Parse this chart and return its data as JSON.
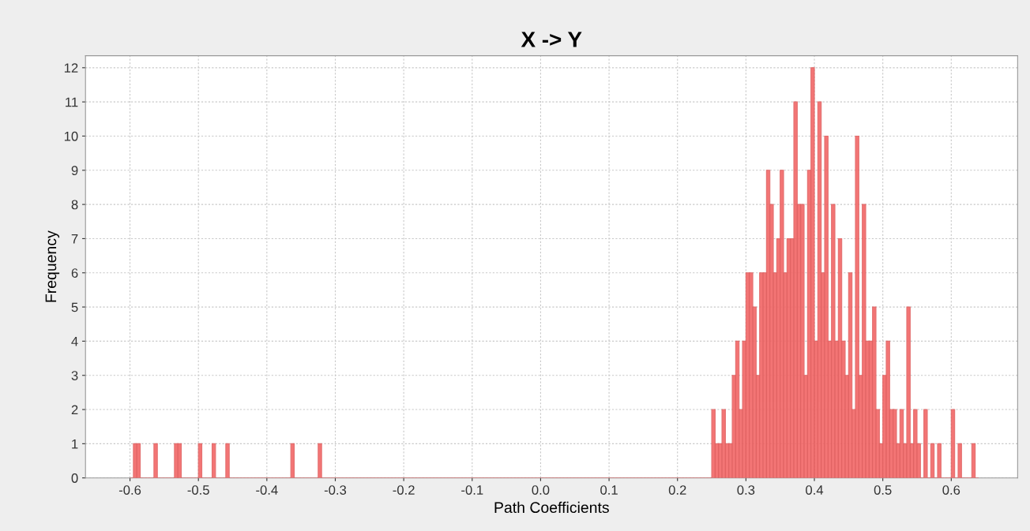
{
  "chart_data": {
    "type": "histogram",
    "title": "X -> Y",
    "xlabel": "Path Coefficients",
    "ylabel": "Frequency",
    "color": "#f26666",
    "bins": [
      -0.6,
      -0.595,
      -0.59,
      -0.585,
      -0.58,
      -0.575,
      -0.57,
      -0.565,
      -0.56,
      -0.555,
      -0.55,
      -0.545,
      -0.54,
      -0.535,
      -0.53,
      -0.525,
      -0.52,
      -0.515,
      -0.51,
      -0.505,
      -0.5,
      -0.495,
      -0.49,
      -0.485,
      -0.48,
      -0.475,
      -0.47,
      -0.465,
      -0.46,
      -0.455,
      -0.45,
      -0.445,
      -0.44,
      -0.435,
      -0.43,
      -0.425,
      -0.42,
      -0.415,
      -0.41,
      -0.405,
      -0.4,
      -0.395,
      -0.39,
      -0.385,
      -0.38,
      -0.375,
      -0.37,
      -0.365,
      -0.36,
      -0.355,
      -0.35,
      -0.345,
      -0.34,
      -0.335,
      -0.33,
      -0.325,
      -0.32,
      -0.315,
      -0.31,
      -0.305,
      -0.3,
      -0.295,
      -0.29,
      -0.285,
      -0.28,
      -0.275,
      -0.27,
      -0.265,
      -0.26,
      -0.255,
      -0.25,
      -0.245,
      -0.24,
      -0.235,
      -0.23,
      -0.225,
      -0.22,
      -0.215,
      -0.21,
      -0.205,
      -0.2,
      -0.195,
      -0.19,
      -0.185,
      -0.18,
      -0.175,
      -0.17,
      -0.165,
      -0.16,
      -0.155,
      -0.15,
      -0.145,
      -0.14,
      -0.135,
      -0.13,
      -0.125,
      -0.12,
      -0.115,
      -0.11,
      -0.105,
      -0.1,
      -0.095,
      -0.09,
      -0.085,
      -0.08,
      -0.075,
      -0.07,
      -0.065,
      -0.06,
      -0.055,
      -0.05,
      -0.045,
      -0.04,
      -0.035,
      -0.03,
      -0.025,
      -0.02,
      -0.015,
      -0.01,
      -0.005,
      0.0,
      0.005,
      0.01,
      0.015,
      0.02,
      0.025,
      0.03,
      0.035,
      0.04,
      0.045,
      0.05,
      0.055,
      0.06,
      0.065,
      0.07,
      0.075,
      0.08,
      0.085,
      0.09,
      0.095,
      0.1,
      0.105,
      0.11,
      0.115,
      0.12,
      0.125,
      0.13,
      0.135,
      0.14,
      0.145,
      0.15,
      0.155,
      0.16,
      0.165,
      0.17,
      0.175,
      0.18,
      0.185,
      0.19,
      0.195,
      0.2,
      0.205,
      0.21,
      0.215,
      0.22,
      0.225,
      0.23,
      0.235,
      0.24,
      0.245,
      0.25,
      0.255,
      0.26,
      0.265,
      0.27,
      0.275,
      0.28,
      0.285,
      0.29,
      0.295,
      0.3,
      0.305,
      0.31,
      0.315,
      0.32,
      0.325,
      0.33,
      0.335,
      0.34,
      0.345,
      0.35,
      0.355,
      0.36,
      0.365,
      0.37,
      0.375,
      0.38,
      0.385,
      0.39,
      0.395,
      0.4,
      0.405,
      0.41,
      0.415,
      0.42,
      0.425,
      0.43,
      0.435,
      0.44,
      0.445,
      0.45,
      0.455,
      0.46,
      0.465,
      0.47,
      0.475,
      0.48,
      0.485,
      0.49,
      0.495,
      0.5,
      0.505,
      0.51,
      0.515,
      0.52,
      0.525,
      0.53,
      0.535,
      0.54,
      0.545,
      0.55,
      0.555,
      0.56,
      0.565,
      0.57,
      0.575,
      0.58,
      0.585,
      0.59,
      0.595,
      0.6,
      0.605,
      0.61,
      0.615,
      0.62,
      0.625,
      0.63,
      0.635,
      0.64
    ],
    "values": [
      0,
      1,
      1,
      0,
      0,
      0,
      0,
      1,
      0,
      0,
      0,
      0,
      0,
      1,
      1,
      0,
      0,
      0,
      0,
      0,
      1,
      0,
      0,
      0,
      1,
      0,
      0,
      0,
      1,
      0,
      0,
      0,
      0,
      0,
      0,
      0,
      0,
      0,
      0,
      0,
      0,
      0,
      0,
      0,
      0,
      0,
      0,
      1,
      0,
      0,
      0,
      0,
      0,
      0,
      0,
      1,
      0,
      0,
      0,
      0,
      0,
      0,
      0,
      0,
      0,
      0,
      0,
      0,
      0,
      0,
      0,
      0,
      0,
      0,
      0,
      0,
      0,
      0,
      0,
      0,
      0,
      0,
      0,
      0,
      0,
      0,
      0,
      0,
      0,
      0,
      0,
      0,
      0,
      0,
      0,
      0,
      0,
      0,
      0,
      0,
      0,
      0,
      0,
      0,
      0,
      0,
      0,
      0,
      0,
      0,
      0,
      0,
      0,
      0,
      0,
      0,
      0,
      0,
      0,
      0,
      0,
      0,
      0,
      0,
      0,
      0,
      0,
      0,
      0,
      0,
      0,
      0,
      0,
      0,
      0,
      0,
      0,
      0,
      0,
      0,
      0,
      0,
      0,
      0,
      0,
      0,
      0,
      0,
      0,
      0,
      0,
      0,
      0,
      0,
      0,
      0,
      0,
      0,
      0,
      0,
      0,
      0,
      0,
      0,
      0,
      0,
      0,
      0,
      0,
      0,
      2,
      1,
      1,
      2,
      1,
      1,
      3,
      4,
      2,
      4,
      6,
      6,
      5,
      3,
      6,
      6,
      9,
      8,
      6,
      7,
      9,
      6,
      7,
      7,
      11,
      8,
      8,
      3,
      9,
      12,
      4,
      11,
      6,
      10,
      4,
      8,
      4,
      7,
      4,
      3,
      6,
      2,
      10,
      3,
      8,
      4,
      4,
      5,
      2,
      1,
      3,
      4,
      2,
      2,
      1,
      2,
      1,
      5,
      1,
      2,
      1,
      0,
      2,
      0,
      1,
      0,
      1,
      0,
      0,
      0,
      2,
      0,
      1,
      0,
      0,
      0,
      1,
      0
    ],
    "xlim": [
      -0.665,
      0.697
    ],
    "ylim": [
      0,
      12.35
    ],
    "xticks": [
      -0.6,
      -0.5,
      -0.4,
      -0.3,
      -0.2,
      -0.1,
      {
        "value": 0,
        "label": "0.0"
      },
      0.1,
      0.2,
      0.3,
      0.4,
      0.5,
      0.6
    ],
    "yticks": [
      0,
      1,
      2,
      3,
      4,
      5,
      6,
      7,
      8,
      9,
      10,
      11,
      12
    ],
    "grid": true
  }
}
